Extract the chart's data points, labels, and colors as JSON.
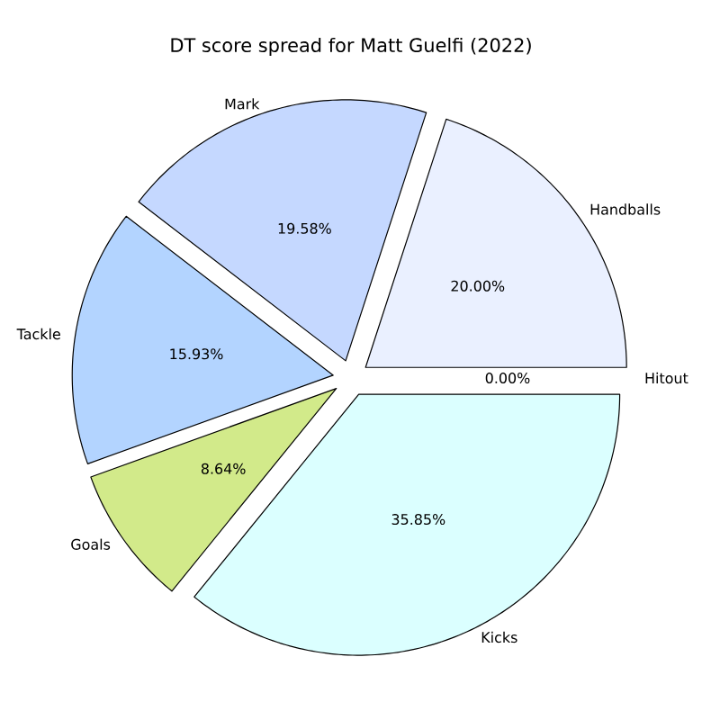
{
  "chart_data": {
    "type": "pie",
    "title": "DT score spread for Matt Guelfi (2022)",
    "categories": [
      "Handballs",
      "Mark",
      "Tackle",
      "Goals",
      "Kicks",
      "Hitout"
    ],
    "values": [
      20.0,
      19.58,
      15.93,
      8.64,
      35.85,
      0.0
    ],
    "value_labels": [
      "20.00%",
      "19.58%",
      "15.93%",
      "8.64%",
      "35.85%",
      "0.00%"
    ],
    "colors": [
      "#eaf0ff",
      "#c5d8ff",
      "#b3d4ff",
      "#d2ea8a",
      "#dbffff",
      "#ffffff"
    ]
  }
}
